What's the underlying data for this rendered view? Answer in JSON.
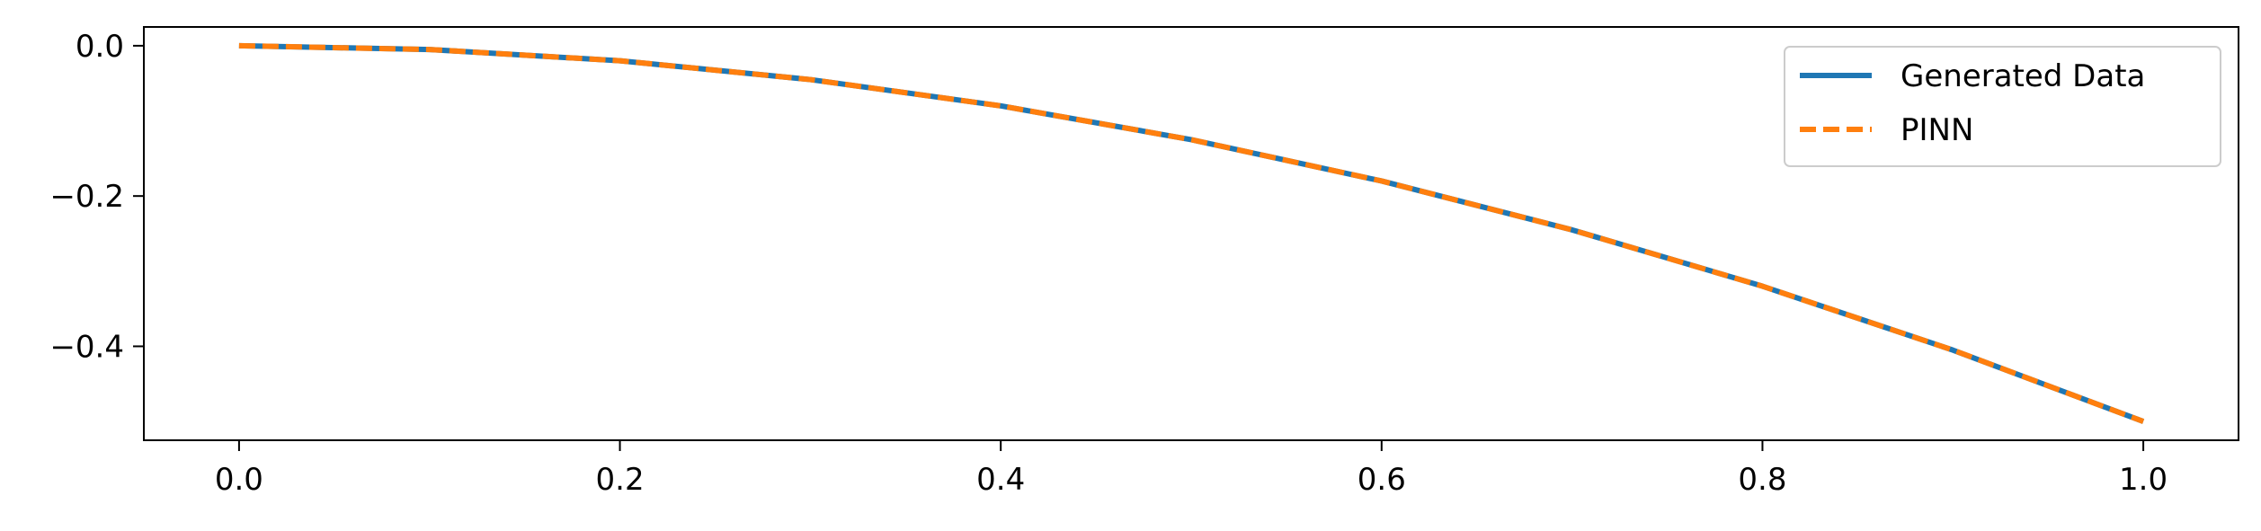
{
  "chart_data": {
    "type": "line",
    "title": "",
    "xlabel": "",
    "ylabel": "",
    "xlim": [
      -0.05,
      1.05
    ],
    "ylim": [
      -0.525,
      0.025
    ],
    "xticks": [
      0.0,
      0.2,
      0.4,
      0.6,
      0.8,
      1.0
    ],
    "xtick_labels": [
      "0.0",
      "0.2",
      "0.4",
      "0.6",
      "0.8",
      "1.0"
    ],
    "yticks": [
      0.0,
      -0.2,
      -0.4
    ],
    "ytick_labels": [
      "0.0",
      "−0.2",
      "−0.4"
    ],
    "grid": false,
    "legend_position": "top-right",
    "x": [
      0.0,
      0.1,
      0.2,
      0.3,
      0.4,
      0.5,
      0.6,
      0.7,
      0.8,
      0.9,
      1.0
    ],
    "series": [
      {
        "name": "Generated Data",
        "color": "#1f77b4",
        "line_style": "solid",
        "values": [
          0.0,
          -0.005,
          -0.02,
          -0.045,
          -0.08,
          -0.125,
          -0.18,
          -0.245,
          -0.32,
          -0.405,
          -0.5
        ]
      },
      {
        "name": "PINN",
        "color": "#ff7f0e",
        "line_style": "dashed",
        "values": [
          0.0,
          -0.005,
          -0.02,
          -0.045,
          -0.08,
          -0.125,
          -0.18,
          -0.245,
          -0.32,
          -0.405,
          -0.5
        ]
      }
    ]
  }
}
